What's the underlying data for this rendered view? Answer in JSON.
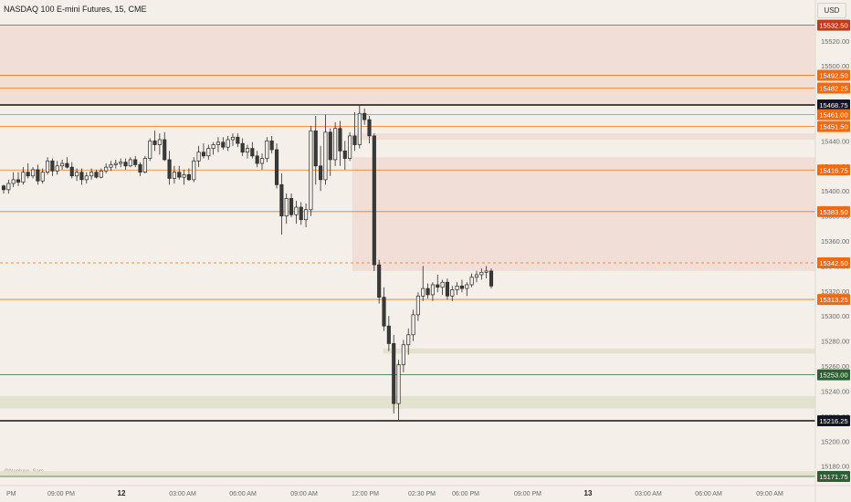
{
  "header": {
    "symbol_title": "NASDAQ 100 E-mini Futures, 15, CME",
    "currency": "USD"
  },
  "watermark": "@Nephew_Sam_",
  "colors": {
    "background": "#f4efe8",
    "supply_zone": "#f0dcd5",
    "demand_zone": "#e2e0cc",
    "level_line": "#f07820",
    "level_badge": "#f06a10",
    "key_line": "#111111",
    "key_badge": "#131722",
    "support_line": "#2e6b3a",
    "support_badge": "#2e5e33",
    "top_badge": "#c23a1e",
    "candle_body": "#f4efe8",
    "candle_stroke": "#2a2a2a"
  },
  "chart_data": {
    "type": "candlestick",
    "title": "NASDAQ 100 E-mini Futures, 15, CME",
    "ylim": [
      15162,
      15545
    ],
    "y_ticks": [
      15180,
      15200,
      15220,
      15240,
      15260,
      15280,
      15300,
      15320,
      15340,
      15360,
      15380,
      15400,
      15420,
      15440,
      15500,
      15520
    ],
    "x_ticks": [
      "PM",
      "09:00 PM",
      "12",
      "03:00 AM",
      "06:00 AM",
      "09:00 AM",
      "12:00 PM",
      "02:30 PM",
      "06:00 PM",
      "09:00 PM",
      "13",
      "03:00 AM",
      "06:00 AM",
      "09:00 AM"
    ],
    "levels": [
      {
        "price": 15532.5,
        "label": "15532.50",
        "style": "top"
      },
      {
        "price": 15492.5,
        "label": "15492.50",
        "style": "level"
      },
      {
        "price": 15482.25,
        "label": "15482.25",
        "style": "level"
      },
      {
        "price": 15468.75,
        "label": "15468.75",
        "style": "key"
      },
      {
        "price": 15461.0,
        "label": "15461.00",
        "style": "level"
      },
      {
        "price": 15451.5,
        "label": "15451.50",
        "style": "level"
      },
      {
        "price": 15416.75,
        "label": "15416.75",
        "style": "level"
      },
      {
        "price": 15383.5,
        "label": "15383.50",
        "style": "level"
      },
      {
        "price": 15342.5,
        "label": "15342.50",
        "style": "dashed"
      },
      {
        "price": 15313.25,
        "label": "15313.25",
        "style": "level"
      },
      {
        "price": 15253.0,
        "label": "15253.00",
        "style": "support"
      },
      {
        "price": 15216.25,
        "label": "15216.25",
        "style": "key"
      },
      {
        "price": 15171.75,
        "label": "15171.75",
        "style": "support"
      }
    ],
    "zones": [
      {
        "kind": "supply",
        "from": 15532.5,
        "to": 15468.75,
        "start": 0
      },
      {
        "kind": "supply",
        "from": 15446,
        "to": 15441,
        "start": 0.432
      },
      {
        "kind": "supply",
        "from": 15427,
        "to": 15336,
        "start": 0.432
      },
      {
        "kind": "demand",
        "from": 15274,
        "to": 15270,
        "start": 0.47
      },
      {
        "kind": "demand",
        "from": 15236,
        "to": 15226,
        "start": 0
      },
      {
        "kind": "demand",
        "from": 15176,
        "to": 15171.75,
        "start": 0
      }
    ],
    "candles": [
      [
        15404,
        15405,
        15398,
        15401
      ],
      [
        15401,
        15409,
        15398,
        15406
      ],
      [
        15406,
        15415,
        15403,
        15409
      ],
      [
        15409,
        15415,
        15404,
        15407
      ],
      [
        15407,
        15419,
        15405,
        15415
      ],
      [
        15415,
        15422,
        15410,
        15412
      ],
      [
        15412,
        15419,
        15410,
        15417
      ],
      [
        15417,
        15421,
        15405,
        15408
      ],
      [
        15408,
        15418,
        15406,
        15415
      ],
      [
        15415,
        15427,
        15413,
        15424
      ],
      [
        15424,
        15426,
        15412,
        15416
      ],
      [
        15416,
        15424,
        15413,
        15420
      ],
      [
        15420,
        15425,
        15417,
        15422
      ],
      [
        15422,
        15427,
        15418,
        15419
      ],
      [
        15419,
        15423,
        15410,
        15412
      ],
      [
        15412,
        15418,
        15408,
        15415
      ],
      [
        15415,
        15418,
        15405,
        15409
      ],
      [
        15409,
        15415,
        15406,
        15412
      ],
      [
        15412,
        15418,
        15409,
        15415
      ],
      [
        15415,
        15417,
        15410,
        15411
      ],
      [
        15411,
        15418,
        15410,
        15416
      ],
      [
        15416,
        15422,
        15414,
        15419
      ],
      [
        15419,
        15424,
        15416,
        15421
      ],
      [
        15421,
        15425,
        15418,
        15422
      ],
      [
        15422,
        15426,
        15419,
        15423
      ],
      [
        15423,
        15426,
        15417,
        15420
      ],
      [
        15420,
        15427,
        15419,
        15425
      ],
      [
        15425,
        15428,
        15419,
        15421
      ],
      [
        15421,
        15423,
        15412,
        15415
      ],
      [
        15415,
        15428,
        15414,
        15426
      ],
      [
        15426,
        15442,
        15424,
        15440
      ],
      [
        15440,
        15448,
        15432,
        15437
      ],
      [
        15437,
        15446,
        15429,
        15441
      ],
      [
        15441,
        15447,
        15424,
        15425
      ],
      [
        15425,
        15432,
        15405,
        15410
      ],
      [
        15410,
        15420,
        15406,
        15415
      ],
      [
        15415,
        15420,
        15409,
        15411
      ],
      [
        15411,
        15417,
        15405,
        15413
      ],
      [
        15413,
        15418,
        15408,
        15409
      ],
      [
        15409,
        15427,
        15407,
        15424
      ],
      [
        15424,
        15436,
        15419,
        15431
      ],
      [
        15431,
        15438,
        15426,
        15428
      ],
      [
        15428,
        15437,
        15425,
        15434
      ],
      [
        15434,
        15439,
        15429,
        15437
      ],
      [
        15437,
        15443,
        15431,
        15439
      ],
      [
        15439,
        15443,
        15433,
        15435
      ],
      [
        15435,
        15444,
        15432,
        15441
      ],
      [
        15441,
        15446,
        15436,
        15443
      ],
      [
        15443,
        15446,
        15435,
        15438
      ],
      [
        15438,
        15442,
        15428,
        15431
      ],
      [
        15431,
        15437,
        15426,
        15434
      ],
      [
        15434,
        15439,
        15426,
        15428
      ],
      [
        15428,
        15432,
        15419,
        15422
      ],
      [
        15422,
        15430,
        15417,
        15426
      ],
      [
        15426,
        15443,
        15423,
        15440
      ],
      [
        15440,
        15444,
        15430,
        15433
      ],
      [
        15433,
        15438,
        15402,
        15405
      ],
      [
        15405,
        15414,
        15365,
        15380
      ],
      [
        15380,
        15398,
        15374,
        15394
      ],
      [
        15394,
        15398,
        15379,
        15381
      ],
      [
        15381,
        15392,
        15374,
        15387
      ],
      [
        15387,
        15391,
        15373,
        15377
      ],
      [
        15377,
        15390,
        15371,
        15385
      ],
      [
        15385,
        15452,
        15380,
        15448
      ],
      [
        15448,
        15460,
        15405,
        15420
      ],
      [
        15420,
        15436,
        15400,
        15409
      ],
      [
        15409,
        15461,
        15405,
        15447
      ],
      [
        15447,
        15450,
        15412,
        15425
      ],
      [
        15425,
        15455,
        15420,
        15450
      ],
      [
        15450,
        15456,
        15420,
        15432
      ],
      [
        15432,
        15440,
        15417,
        15426
      ],
      [
        15426,
        15447,
        15424,
        15444
      ],
      [
        15444,
        15463,
        15432,
        15437
      ],
      [
        15437,
        15469,
        15434,
        15462
      ],
      [
        15462,
        15466,
        15453,
        15457
      ],
      [
        15457,
        15460,
        15438,
        15444
      ],
      [
        15444,
        15446,
        15336,
        15341
      ],
      [
        15341,
        15345,
        15310,
        15315
      ],
      [
        15315,
        15323,
        15288,
        15292
      ],
      [
        15292,
        15300,
        15272,
        15278
      ],
      [
        15278,
        15285,
        15222,
        15230
      ],
      [
        15230,
        15265,
        15217,
        15261
      ],
      [
        15261,
        15281,
        15255,
        15277
      ],
      [
        15277,
        15290,
        15269,
        15285
      ],
      [
        15285,
        15305,
        15280,
        15301
      ],
      [
        15301,
        15319,
        15296,
        15316
      ],
      [
        15316,
        15340,
        15312,
        15322
      ],
      [
        15322,
        15326,
        15314,
        15317
      ],
      [
        15317,
        15327,
        15312,
        15325
      ],
      [
        15325,
        15333,
        15319,
        15323
      ],
      [
        15323,
        15329,
        15317,
        15327
      ],
      [
        15327,
        15330,
        15313,
        15316
      ],
      [
        15316,
        15324,
        15312,
        15321
      ],
      [
        15321,
        15327,
        15317,
        15324
      ],
      [
        15324,
        15329,
        15319,
        15322
      ],
      [
        15322,
        15327,
        15316,
        15325
      ],
      [
        15325,
        15334,
        15323,
        15331
      ],
      [
        15331,
        15336,
        15327,
        15333
      ],
      [
        15333,
        15338,
        15329,
        15335
      ],
      [
        15335,
        15340,
        15330,
        15336
      ],
      [
        15336,
        15338,
        15322,
        15324
      ]
    ]
  }
}
